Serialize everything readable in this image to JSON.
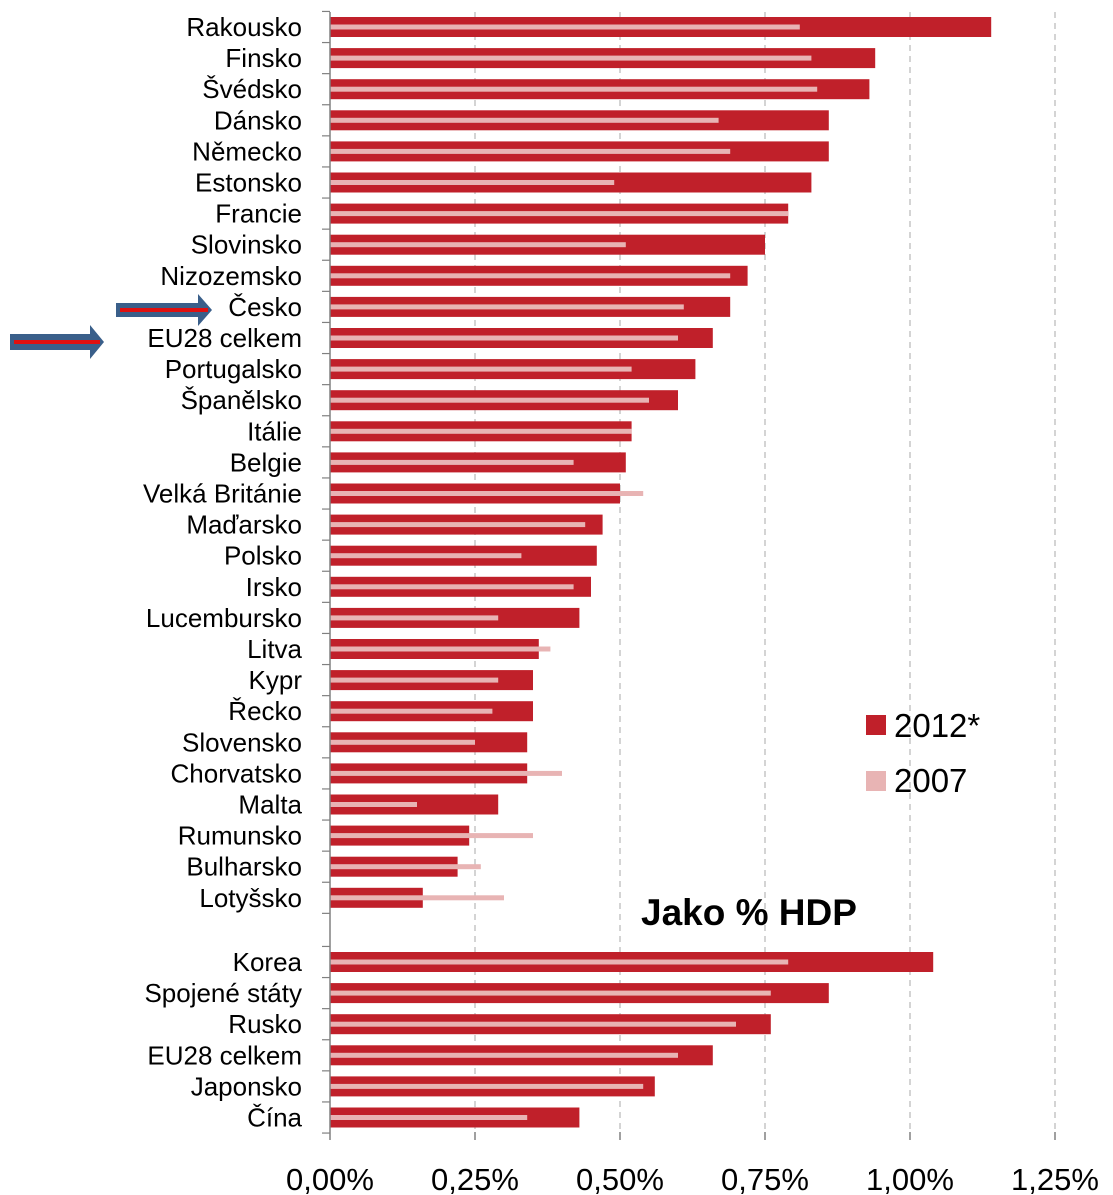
{
  "chart_data": {
    "type": "bar",
    "orientation": "horizontal",
    "annotation": "Jako % HDP",
    "xlim": [
      0,
      1.25
    ],
    "x_ticks": [
      "0,00%",
      "0,25%",
      "0,50%",
      "0,75%",
      "1,00%",
      "1,25%"
    ],
    "grid": "vertical dashed",
    "legend_position": "right-bottom",
    "colors": {
      "2012*": "#c0202a",
      "2007": "#e8b4b4"
    },
    "highlighted": [
      "Česko",
      "EU28 celkem"
    ],
    "groups": [
      {
        "categories": [
          "Rakousko",
          "Finsko",
          "Švédsko",
          "Dánsko",
          "Německo",
          "Estonsko",
          "Francie",
          "Slovinsko",
          "Nizozemsko",
          "Česko",
          "EU28 celkem",
          "Portugalsko",
          "Španělsko",
          "Itálie",
          "Belgie",
          "Velká Británie",
          "Maďarsko",
          "Polsko",
          "Irsko",
          "Lucembursko",
          "Litva",
          "Kypr",
          "Řecko",
          "Slovensko",
          "Chorvatsko",
          "Malta",
          "Rumunsko",
          "Bulharsko",
          "Lotyšsko"
        ],
        "series": [
          {
            "name": "2012*",
            "values": [
              1.14,
              0.94,
              0.93,
              0.86,
              0.86,
              0.83,
              0.79,
              0.75,
              0.72,
              0.69,
              0.66,
              0.63,
              0.6,
              0.52,
              0.51,
              0.5,
              0.47,
              0.46,
              0.45,
              0.43,
              0.36,
              0.35,
              0.35,
              0.34,
              0.34,
              0.29,
              0.24,
              0.22,
              0.16
            ]
          },
          {
            "name": "2007",
            "values": [
              0.81,
              0.83,
              0.84,
              0.67,
              0.69,
              0.49,
              0.79,
              0.51,
              0.69,
              0.61,
              0.6,
              0.52,
              0.55,
              0.52,
              0.42,
              0.54,
              0.44,
              0.33,
              0.42,
              0.29,
              0.38,
              0.29,
              0.28,
              0.25,
              0.4,
              0.15,
              0.35,
              0.26,
              0.3
            ]
          }
        ]
      },
      {
        "categories": [
          "Korea",
          "Spojené státy",
          "Rusko",
          "EU28 celkem",
          "Japonsko",
          "Čína"
        ],
        "series": [
          {
            "name": "2012*",
            "values": [
              1.04,
              0.86,
              0.76,
              0.66,
              0.56,
              0.43
            ]
          },
          {
            "name": "2007",
            "values": [
              0.79,
              0.76,
              0.7,
              0.6,
              0.54,
              0.34
            ]
          }
        ]
      }
    ]
  }
}
